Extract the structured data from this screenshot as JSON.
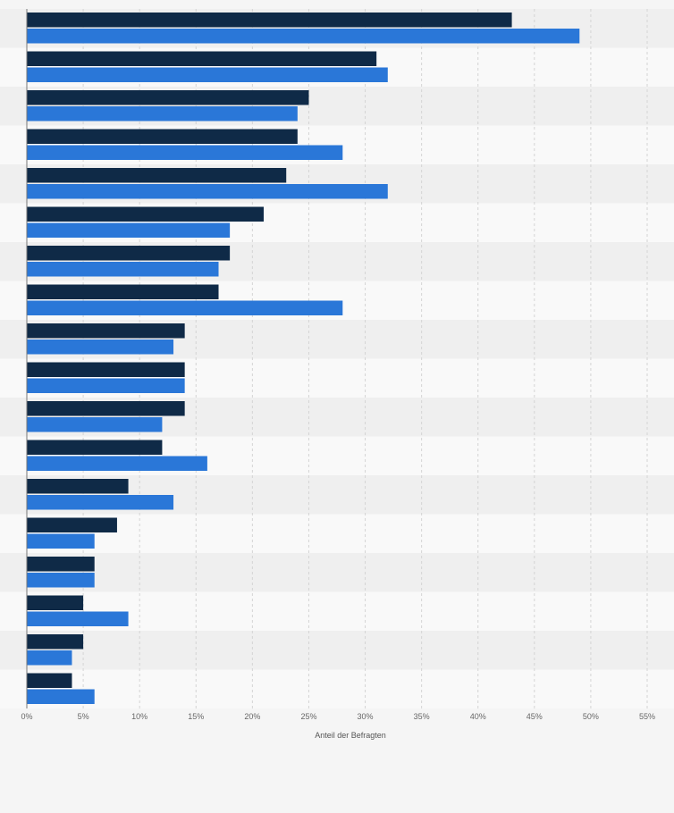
{
  "chart_data": {
    "type": "bar",
    "orientation": "horizontal",
    "categories": [
      "",
      "",
      "",
      "",
      "",
      "",
      "",
      "",
      "",
      "",
      "",
      "",
      "",
      "",
      "",
      "",
      "",
      ""
    ],
    "series": [
      {
        "values": [
          43,
          31,
          25,
          24,
          23,
          21,
          18,
          17,
          14,
          14,
          14,
          12,
          9,
          8,
          6,
          5,
          5,
          4
        ]
      },
      {
        "values": [
          49,
          32,
          24,
          28,
          32,
          18,
          17,
          28,
          13,
          14,
          12,
          16,
          13,
          6,
          6,
          9,
          4,
          6
        ]
      }
    ],
    "xlabel": "Anteil der Befragten",
    "ylabel": "",
    "xlim": [
      0,
      55
    ],
    "xticks": [
      "0%",
      "5%",
      "10%",
      "15%",
      "20%",
      "25%",
      "30%",
      "35%",
      "40%",
      "45%",
      "50%",
      "55%"
    ],
    "grid": true,
    "legend": "none",
    "colors": {
      "series_0": "#0f2a47",
      "series_1": "#2a77d8",
      "band_dark": "#efefef",
      "band_light": "#f9f9f9",
      "gridline": "#d4d4d4",
      "axis": "#777777"
    }
  }
}
